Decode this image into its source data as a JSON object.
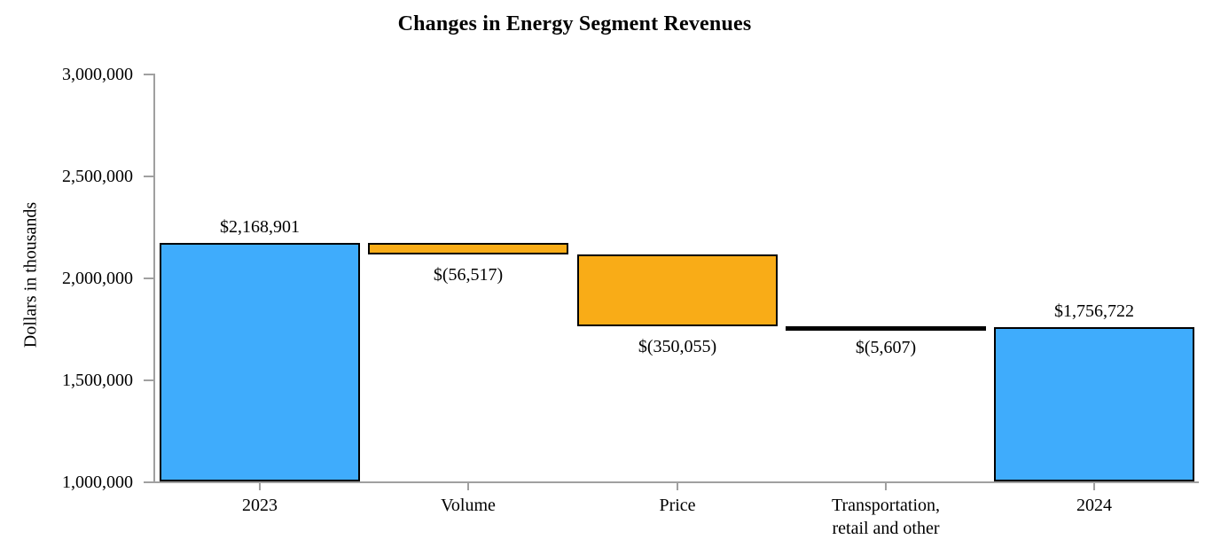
{
  "title": "Changes in Energy Segment Revenues",
  "chart_data": {
    "type": "bar",
    "subtype": "waterfall",
    "title": "Changes in Energy Segment Revenues",
    "xlabel": "",
    "ylabel": "Dollars in thousands",
    "ylim": [
      1000000,
      3000000
    ],
    "ytick_step": 500000,
    "yticks": [
      {
        "value": 1000000,
        "label": "1,000,000"
      },
      {
        "value": 1500000,
        "label": "1,500,000"
      },
      {
        "value": 2000000,
        "label": "2,000,000"
      },
      {
        "value": 2500000,
        "label": "2,500,000"
      },
      {
        "value": 3000000,
        "label": "3,000,000"
      }
    ],
    "grid": false,
    "legend": "none",
    "categories": [
      "2023",
      "Volume",
      "Price",
      "Transportation,\nretail and other",
      "2024"
    ],
    "bars": [
      {
        "category": "2023",
        "kind": "total",
        "start": 0,
        "end": 2168901,
        "value": 2168901,
        "label": "$2,168,901",
        "label_position": "above",
        "color": "#3facfc"
      },
      {
        "category": "Volume",
        "kind": "decrease",
        "start": 2168901,
        "end": 2112384,
        "value": -56517,
        "label": "$(56,517)",
        "label_position": "below",
        "color": "#f9ac17"
      },
      {
        "category": "Price",
        "kind": "decrease",
        "start": 2112384,
        "end": 1762329,
        "value": -350055,
        "label": "$(350,055)",
        "label_position": "below",
        "color": "#f9ac17"
      },
      {
        "category": "Transportation,\nretail and other",
        "kind": "decrease",
        "start": 1762329,
        "end": 1756722,
        "value": -5607,
        "label": "$(5,607)",
        "label_position": "below",
        "color": "#000000"
      },
      {
        "category": "2024",
        "kind": "total",
        "start": 0,
        "end": 1756722,
        "value": 1756722,
        "label": "$1,756,722",
        "label_position": "above",
        "color": "#3facfc"
      }
    ],
    "colors": {
      "total_bar": "#3facfc",
      "decrease_bar": "#f9ac17",
      "bar_border": "#000000",
      "axis": "#a0a0a0",
      "text": "#000000",
      "background": "#ffffff"
    }
  }
}
